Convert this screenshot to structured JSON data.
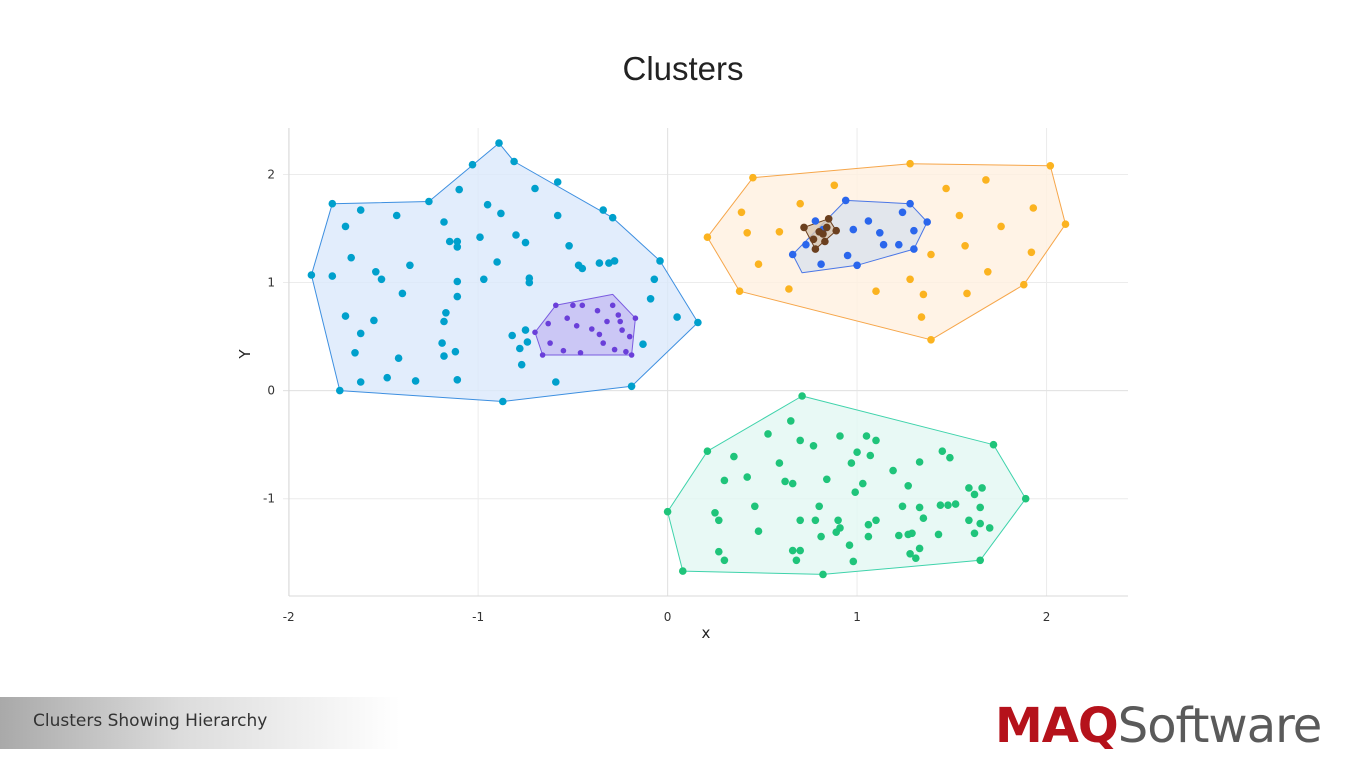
{
  "slide": {
    "caption": "Clusters Showing Hierarchy",
    "logo_primary": "MAQ",
    "logo_secondary": "Software",
    "logo_primary_color": "#b5121b",
    "logo_secondary_color": "#5a5a5a"
  },
  "chart_data": {
    "type": "scatter",
    "title": "Clusters",
    "xlabel": "x",
    "ylabel": "Y",
    "xlim": [
      -2.03,
      2.43
    ],
    "ylim": [
      -1.9,
      2.43
    ],
    "x_ticks": [
      -2,
      -1,
      0,
      1,
      2
    ],
    "y_ticks": [
      -1,
      0,
      1,
      2
    ],
    "x_tick_labels": [
      "-2",
      "-1",
      "0",
      "1",
      "2"
    ],
    "y_tick_labels": [
      "-1",
      "0",
      "1",
      "2"
    ],
    "grid": true,
    "legend": "none",
    "series": [
      {
        "color": "#00a0cc",
        "fill": "#dbe9fb",
        "hull_color": "#3d8fe0",
        "points": [
          [
            -0.89,
            2.29
          ],
          [
            -0.81,
            2.12
          ],
          [
            -1.03,
            2.09
          ],
          [
            -1.1,
            1.86
          ],
          [
            -0.7,
            1.87
          ],
          [
            -0.58,
            1.93
          ],
          [
            -1.77,
            1.73
          ],
          [
            -1.26,
            1.75
          ],
          [
            -0.95,
            1.72
          ],
          [
            -1.62,
            1.67
          ],
          [
            -1.43,
            1.62
          ],
          [
            -0.88,
            1.64
          ],
          [
            -0.58,
            1.62
          ],
          [
            -0.34,
            1.67
          ],
          [
            -0.29,
            1.6
          ],
          [
            -1.7,
            1.52
          ],
          [
            -1.18,
            1.56
          ],
          [
            -0.99,
            1.42
          ],
          [
            -0.8,
            1.44
          ],
          [
            -0.75,
            1.37
          ],
          [
            -1.15,
            1.38
          ],
          [
            -1.11,
            1.38
          ],
          [
            -1.11,
            1.33
          ],
          [
            -0.52,
            1.34
          ],
          [
            -1.88,
            1.07
          ],
          [
            -1.77,
            1.06
          ],
          [
            -1.67,
            1.23
          ],
          [
            -1.54,
            1.1
          ],
          [
            -1.51,
            1.03
          ],
          [
            -1.36,
            1.16
          ],
          [
            -0.9,
            1.19
          ],
          [
            -0.47,
            1.16
          ],
          [
            -0.45,
            1.13
          ],
          [
            -0.36,
            1.18
          ],
          [
            -0.31,
            1.18
          ],
          [
            -0.28,
            1.2
          ],
          [
            -0.04,
            1.2
          ],
          [
            -1.11,
            1.01
          ],
          [
            -0.97,
            1.03
          ],
          [
            -0.73,
            1.04
          ],
          [
            -0.73,
            1.0
          ],
          [
            -0.07,
            1.03
          ],
          [
            -1.4,
            0.9
          ],
          [
            -1.11,
            0.87
          ],
          [
            -0.09,
            0.85
          ],
          [
            -1.17,
            0.72
          ],
          [
            -1.18,
            0.64
          ],
          [
            -1.7,
            0.69
          ],
          [
            -1.55,
            0.65
          ],
          [
            -1.62,
            0.53
          ],
          [
            -1.65,
            0.35
          ],
          [
            -1.42,
            0.3
          ],
          [
            -1.19,
            0.44
          ],
          [
            -1.18,
            0.32
          ],
          [
            -1.12,
            0.36
          ],
          [
            -0.75,
            0.56
          ],
          [
            -0.82,
            0.51
          ],
          [
            -0.78,
            0.39
          ],
          [
            -0.77,
            0.24
          ],
          [
            -0.74,
            0.45
          ],
          [
            -0.13,
            0.43
          ],
          [
            0.05,
            0.68
          ],
          [
            0.16,
            0.63
          ],
          [
            -1.73,
            0.0
          ],
          [
            -1.62,
            0.08
          ],
          [
            -1.48,
            0.12
          ],
          [
            -1.33,
            0.09
          ],
          [
            -1.11,
            0.1
          ],
          [
            -0.87,
            -0.1
          ],
          [
            -0.59,
            0.08
          ],
          [
            -0.19,
            0.04
          ]
        ],
        "hull": [
          [
            -0.89,
            2.29
          ],
          [
            -0.81,
            2.12
          ],
          [
            -0.29,
            1.6
          ],
          [
            -0.04,
            1.2
          ],
          [
            0.16,
            0.63
          ],
          [
            -0.19,
            0.04
          ],
          [
            -0.87,
            -0.1
          ],
          [
            -1.73,
            0.0
          ],
          [
            -1.88,
            1.07
          ],
          [
            -1.77,
            1.73
          ],
          [
            -1.26,
            1.75
          ]
        ]
      },
      {
        "color": "#6a3fd9",
        "fill": "#c7c0f3",
        "hull_color": "#7a5be0",
        "small": true,
        "points": [
          [
            -0.7,
            0.54
          ],
          [
            -0.63,
            0.62
          ],
          [
            -0.59,
            0.79
          ],
          [
            -0.53,
            0.67
          ],
          [
            -0.48,
            0.6
          ],
          [
            -0.45,
            0.79
          ],
          [
            -0.4,
            0.57
          ],
          [
            -0.37,
            0.74
          ],
          [
            -0.34,
            0.44
          ],
          [
            -0.32,
            0.64
          ],
          [
            -0.29,
            0.79
          ],
          [
            -0.26,
            0.7
          ],
          [
            -0.25,
            0.64
          ],
          [
            -0.24,
            0.56
          ],
          [
            -0.22,
            0.36
          ],
          [
            -0.19,
            0.33
          ],
          [
            -0.17,
            0.67
          ],
          [
            -0.66,
            0.33
          ],
          [
            -0.62,
            0.44
          ],
          [
            -0.55,
            0.37
          ],
          [
            -0.46,
            0.35
          ],
          [
            -0.5,
            0.79
          ],
          [
            -0.28,
            0.38
          ],
          [
            -0.36,
            0.52
          ],
          [
            -0.2,
            0.5
          ]
        ],
        "hull": [
          [
            -0.59,
            0.79
          ],
          [
            -0.29,
            0.89
          ],
          [
            -0.17,
            0.67
          ],
          [
            -0.19,
            0.33
          ],
          [
            -0.66,
            0.33
          ],
          [
            -0.7,
            0.54
          ]
        ]
      },
      {
        "color": "#fbb320",
        "fill": "#fff0e0",
        "hull_color": "#f6a64a",
        "points": [
          [
            1.28,
            2.1
          ],
          [
            2.02,
            2.08
          ],
          [
            0.45,
            1.97
          ],
          [
            0.88,
            1.9
          ],
          [
            1.47,
            1.87
          ],
          [
            1.68,
            1.95
          ],
          [
            2.1,
            1.54
          ],
          [
            1.93,
            1.69
          ],
          [
            0.39,
            1.65
          ],
          [
            0.7,
            1.73
          ],
          [
            1.54,
            1.62
          ],
          [
            1.76,
            1.52
          ],
          [
            0.21,
            1.42
          ],
          [
            0.42,
            1.46
          ],
          [
            0.59,
            1.47
          ],
          [
            1.57,
            1.34
          ],
          [
            1.92,
            1.28
          ],
          [
            1.39,
            1.26
          ],
          [
            0.48,
            1.17
          ],
          [
            1.69,
            1.1
          ],
          [
            1.28,
            1.03
          ],
          [
            1.88,
            0.98
          ],
          [
            0.38,
            0.92
          ],
          [
            0.64,
            0.94
          ],
          [
            1.1,
            0.92
          ],
          [
            1.35,
            0.89
          ],
          [
            1.58,
            0.9
          ],
          [
            1.34,
            0.68
          ],
          [
            1.39,
            0.47
          ]
        ],
        "hull": [
          [
            0.45,
            1.97
          ],
          [
            1.28,
            2.1
          ],
          [
            2.02,
            2.08
          ],
          [
            2.1,
            1.54
          ],
          [
            1.88,
            0.98
          ],
          [
            1.39,
            0.47
          ],
          [
            0.38,
            0.92
          ],
          [
            0.21,
            1.42
          ]
        ]
      },
      {
        "color": "#2a66ec",
        "fill": "#dbe2ed",
        "hull_color": "#4a76e6",
        "points": [
          [
            0.94,
            1.76
          ],
          [
            1.28,
            1.73
          ],
          [
            1.24,
            1.65
          ],
          [
            1.06,
            1.57
          ],
          [
            1.37,
            1.56
          ],
          [
            0.78,
            1.57
          ],
          [
            0.82,
            1.49
          ],
          [
            0.98,
            1.49
          ],
          [
            1.12,
            1.46
          ],
          [
            1.3,
            1.48
          ],
          [
            0.73,
            1.35
          ],
          [
            1.14,
            1.35
          ],
          [
            1.22,
            1.35
          ],
          [
            1.3,
            1.31
          ],
          [
            0.66,
            1.26
          ],
          [
            0.95,
            1.25
          ],
          [
            0.81,
            1.17
          ],
          [
            1.0,
            1.16
          ]
        ],
        "hull": [
          [
            0.94,
            1.76
          ],
          [
            1.28,
            1.73
          ],
          [
            1.37,
            1.56
          ],
          [
            1.3,
            1.31
          ],
          [
            1.0,
            1.16
          ],
          [
            0.71,
            1.09
          ],
          [
            0.66,
            1.26
          ]
        ]
      },
      {
        "color": "#6b3f1e",
        "fill": "#d8c6b0",
        "hull_color": "#6b3f1e",
        "points": [
          [
            0.85,
            1.59
          ],
          [
            0.72,
            1.51
          ],
          [
            0.84,
            1.51
          ],
          [
            0.89,
            1.48
          ],
          [
            0.8,
            1.47
          ],
          [
            0.82,
            1.45
          ],
          [
            0.77,
            1.4
          ],
          [
            0.83,
            1.38
          ],
          [
            0.78,
            1.31
          ]
        ],
        "hull": [
          [
            0.85,
            1.59
          ],
          [
            0.89,
            1.48
          ],
          [
            0.78,
            1.31
          ],
          [
            0.72,
            1.51
          ]
        ]
      },
      {
        "color": "#1fc47a",
        "fill": "#e2f8f2",
        "hull_color": "#3fd3ab",
        "points": [
          [
            0.71,
            -0.05
          ],
          [
            0.65,
            -0.28
          ],
          [
            0.53,
            -0.4
          ],
          [
            0.7,
            -0.46
          ],
          [
            0.77,
            -0.51
          ],
          [
            0.91,
            -0.42
          ],
          [
            1.1,
            -0.46
          ],
          [
            1.05,
            -0.42
          ],
          [
            1.72,
            -0.5
          ],
          [
            1.45,
            -0.56
          ],
          [
            0.21,
            -0.56
          ],
          [
            0.35,
            -0.61
          ],
          [
            1.0,
            -0.57
          ],
          [
            1.07,
            -0.6
          ],
          [
            1.49,
            -0.62
          ],
          [
            1.33,
            -0.66
          ],
          [
            0.59,
            -0.67
          ],
          [
            0.97,
            -0.67
          ],
          [
            1.19,
            -0.74
          ],
          [
            0.3,
            -0.83
          ],
          [
            0.62,
            -0.84
          ],
          [
            0.66,
            -0.86
          ],
          [
            0.84,
            -0.82
          ],
          [
            1.03,
            -0.86
          ],
          [
            1.27,
            -0.88
          ],
          [
            1.59,
            -0.9
          ],
          [
            1.66,
            -0.9
          ],
          [
            0.99,
            -0.94
          ],
          [
            1.62,
            -0.96
          ],
          [
            0.42,
            -0.8
          ],
          [
            1.89,
            -1.0
          ],
          [
            0.0,
            -1.12
          ],
          [
            0.46,
            -1.07
          ],
          [
            1.24,
            -1.07
          ],
          [
            1.33,
            -1.08
          ],
          [
            1.48,
            -1.06
          ],
          [
            1.52,
            -1.05
          ],
          [
            1.65,
            -1.08
          ],
          [
            1.44,
            -1.06
          ],
          [
            0.8,
            -1.07
          ],
          [
            0.25,
            -1.13
          ],
          [
            0.27,
            -1.2
          ],
          [
            0.78,
            -1.2
          ],
          [
            0.7,
            -1.2
          ],
          [
            0.9,
            -1.2
          ],
          [
            1.06,
            -1.24
          ],
          [
            1.1,
            -1.2
          ],
          [
            1.35,
            -1.18
          ],
          [
            1.59,
            -1.2
          ],
          [
            0.91,
            -1.27
          ],
          [
            1.65,
            -1.23
          ],
          [
            1.7,
            -1.27
          ],
          [
            0.48,
            -1.3
          ],
          [
            0.89,
            -1.31
          ],
          [
            1.06,
            -1.35
          ],
          [
            1.22,
            -1.34
          ],
          [
            1.27,
            -1.33
          ],
          [
            1.29,
            -1.32
          ],
          [
            1.43,
            -1.33
          ],
          [
            1.62,
            -1.32
          ],
          [
            0.96,
            -1.43
          ],
          [
            0.66,
            -1.48
          ],
          [
            0.7,
            -1.48
          ],
          [
            1.28,
            -1.51
          ],
          [
            1.31,
            -1.55
          ],
          [
            0.27,
            -1.49
          ],
          [
            0.3,
            -1.57
          ],
          [
            0.68,
            -1.57
          ],
          [
            0.98,
            -1.58
          ],
          [
            1.65,
            -1.57
          ],
          [
            0.08,
            -1.67
          ],
          [
            0.82,
            -1.7
          ],
          [
            1.33,
            -1.46
          ],
          [
            0.81,
            -1.35
          ]
        ],
        "hull": [
          [
            0.71,
            -0.05
          ],
          [
            1.72,
            -0.5
          ],
          [
            1.89,
            -1.0
          ],
          [
            1.65,
            -1.57
          ],
          [
            0.82,
            -1.7
          ],
          [
            0.08,
            -1.67
          ],
          [
            0.0,
            -1.12
          ],
          [
            0.21,
            -0.56
          ]
        ]
      }
    ]
  }
}
